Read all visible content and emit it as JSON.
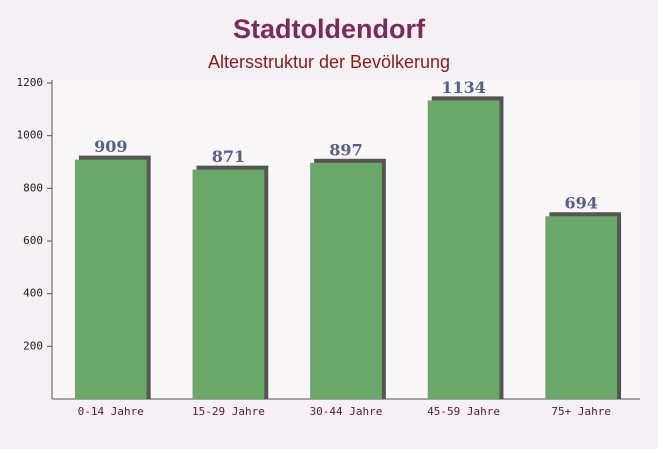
{
  "chart_data": {
    "type": "bar",
    "title": "Stadtoldendorf",
    "subtitle": "Altersstruktur der Bevölkerung",
    "categories": [
      "0-14 Jahre",
      "15-29 Jahre",
      "30-44 Jahre",
      "45-59 Jahre",
      "75+ Jahre"
    ],
    "values": [
      909,
      871,
      897,
      1134,
      694
    ],
    "color": "#6aa86a",
    "ylim": [
      0,
      1200
    ],
    "yticks": [
      200,
      400,
      600,
      800,
      1000,
      1200
    ]
  }
}
